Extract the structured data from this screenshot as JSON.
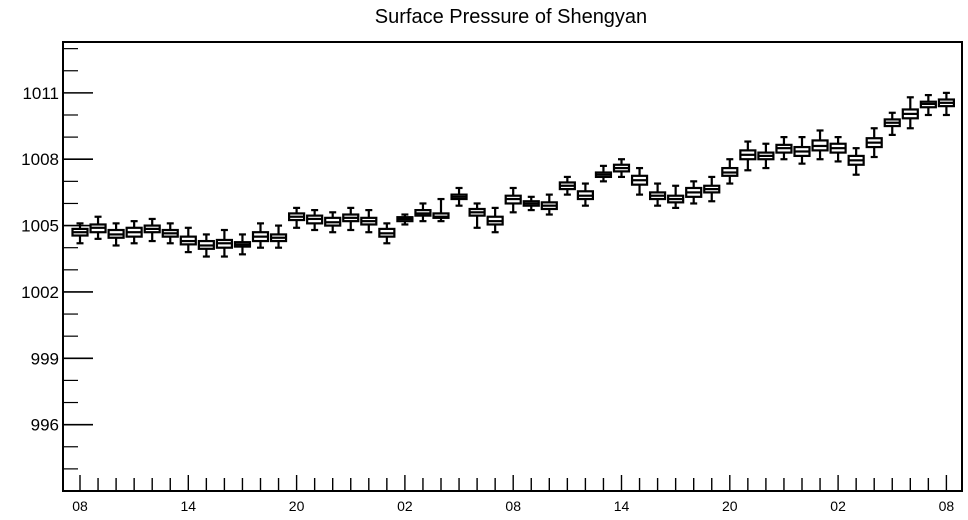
{
  "chart_data": {
    "type": "boxplot",
    "title": "Surface Pressure of Shengyan",
    "xlabel": "",
    "ylabel": "",
    "ylim": [
      993,
      1013.3
    ],
    "y_ticks": [
      996,
      999,
      1002,
      1005,
      1008,
      1011
    ],
    "y_tick_labels": [
      "996",
      "999",
      "1002",
      "1005",
      "1008",
      "1011"
    ],
    "x_tick_positions": [
      0,
      6,
      12,
      18,
      24,
      30,
      36,
      42,
      48
    ],
    "x_tick_labels": [
      "08",
      "14",
      "20",
      "02",
      "08",
      "14",
      "20",
      "02",
      "08"
    ],
    "grid": false,
    "legend": "none",
    "box_color": "#000000",
    "boxes": [
      {
        "x": 0,
        "whisker_low": 1004.2,
        "q1": 1004.55,
        "median": 1004.7,
        "q3": 1004.85,
        "whisker_high": 1005.1
      },
      {
        "x": 1,
        "whisker_low": 1004.4,
        "q1": 1004.7,
        "median": 1004.9,
        "q3": 1005.05,
        "whisker_high": 1005.4
      },
      {
        "x": 2,
        "whisker_low": 1004.1,
        "q1": 1004.45,
        "median": 1004.6,
        "q3": 1004.8,
        "whisker_high": 1005.1
      },
      {
        "x": 3,
        "whisker_low": 1004.2,
        "q1": 1004.5,
        "median": 1004.7,
        "q3": 1004.9,
        "whisker_high": 1005.2
      },
      {
        "x": 4,
        "whisker_low": 1004.3,
        "q1": 1004.7,
        "median": 1004.85,
        "q3": 1005.0,
        "whisker_high": 1005.3
      },
      {
        "x": 5,
        "whisker_low": 1004.2,
        "q1": 1004.5,
        "median": 1004.65,
        "q3": 1004.8,
        "whisker_high": 1005.1
      },
      {
        "x": 6,
        "whisker_low": 1003.8,
        "q1": 1004.15,
        "median": 1004.3,
        "q3": 1004.5,
        "whisker_high": 1004.9
      },
      {
        "x": 7,
        "whisker_low": 1003.6,
        "q1": 1003.95,
        "median": 1004.1,
        "q3": 1004.3,
        "whisker_high": 1004.6
      },
      {
        "x": 8,
        "whisker_low": 1003.6,
        "q1": 1004.0,
        "median": 1004.2,
        "q3": 1004.35,
        "whisker_high": 1004.8
      },
      {
        "x": 9,
        "whisker_low": 1003.7,
        "q1": 1004.05,
        "median": 1004.15,
        "q3": 1004.25,
        "whisker_high": 1004.6
      },
      {
        "x": 10,
        "whisker_low": 1004.0,
        "q1": 1004.3,
        "median": 1004.5,
        "q3": 1004.7,
        "whisker_high": 1005.1
      },
      {
        "x": 11,
        "whisker_low": 1004.0,
        "q1": 1004.3,
        "median": 1004.45,
        "q3": 1004.6,
        "whisker_high": 1005.0
      },
      {
        "x": 12,
        "whisker_low": 1004.9,
        "q1": 1005.25,
        "median": 1005.4,
        "q3": 1005.55,
        "whisker_high": 1005.8
      },
      {
        "x": 13,
        "whisker_low": 1004.8,
        "q1": 1005.1,
        "median": 1005.3,
        "q3": 1005.45,
        "whisker_high": 1005.7
      },
      {
        "x": 14,
        "whisker_low": 1004.7,
        "q1": 1005.0,
        "median": 1005.15,
        "q3": 1005.35,
        "whisker_high": 1005.6
      },
      {
        "x": 15,
        "whisker_low": 1004.8,
        "q1": 1005.2,
        "median": 1005.35,
        "q3": 1005.5,
        "whisker_high": 1005.8
      },
      {
        "x": 16,
        "whisker_low": 1004.7,
        "q1": 1005.05,
        "median": 1005.2,
        "q3": 1005.35,
        "whisker_high": 1005.7
      },
      {
        "x": 17,
        "whisker_low": 1004.2,
        "q1": 1004.5,
        "median": 1004.65,
        "q3": 1004.85,
        "whisker_high": 1005.1
      },
      {
        "x": 18,
        "whisker_low": 1005.05,
        "q1": 1005.2,
        "median": 1005.3,
        "q3": 1005.38,
        "whisker_high": 1005.5
      },
      {
        "x": 19,
        "whisker_low": 1005.2,
        "q1": 1005.45,
        "median": 1005.55,
        "q3": 1005.7,
        "whisker_high": 1006.0
      },
      {
        "x": 20,
        "whisker_low": 1005.2,
        "q1": 1005.35,
        "median": 1005.4,
        "q3": 1005.55,
        "whisker_high": 1006.2
      },
      {
        "x": 21,
        "whisker_low": 1005.9,
        "q1": 1006.2,
        "median": 1006.3,
        "q3": 1006.4,
        "whisker_high": 1006.7
      },
      {
        "x": 22,
        "whisker_low": 1004.9,
        "q1": 1005.45,
        "median": 1005.6,
        "q3": 1005.75,
        "whisker_high": 1006.0
      },
      {
        "x": 23,
        "whisker_low": 1004.7,
        "q1": 1005.05,
        "median": 1005.2,
        "q3": 1005.4,
        "whisker_high": 1005.8
      },
      {
        "x": 24,
        "whisker_low": 1005.6,
        "q1": 1006.0,
        "median": 1006.2,
        "q3": 1006.35,
        "whisker_high": 1006.7
      },
      {
        "x": 25,
        "whisker_low": 1005.7,
        "q1": 1005.9,
        "median": 1006.0,
        "q3": 1006.1,
        "whisker_high": 1006.3
      },
      {
        "x": 26,
        "whisker_low": 1005.5,
        "q1": 1005.75,
        "median": 1005.9,
        "q3": 1006.05,
        "whisker_high": 1006.4
      },
      {
        "x": 27,
        "whisker_low": 1006.4,
        "q1": 1006.65,
        "median": 1006.8,
        "q3": 1006.95,
        "whisker_high": 1007.2
      },
      {
        "x": 28,
        "whisker_low": 1005.9,
        "q1": 1006.2,
        "median": 1006.35,
        "q3": 1006.55,
        "whisker_high": 1006.9
      },
      {
        "x": 29,
        "whisker_low": 1007.0,
        "q1": 1007.2,
        "median": 1007.3,
        "q3": 1007.4,
        "whisker_high": 1007.7
      },
      {
        "x": 30,
        "whisker_low": 1007.2,
        "q1": 1007.45,
        "median": 1007.6,
        "q3": 1007.75,
        "whisker_high": 1008.0
      },
      {
        "x": 31,
        "whisker_low": 1006.4,
        "q1": 1006.85,
        "median": 1007.05,
        "q3": 1007.25,
        "whisker_high": 1007.6
      },
      {
        "x": 32,
        "whisker_low": 1005.9,
        "q1": 1006.2,
        "median": 1006.35,
        "q3": 1006.5,
        "whisker_high": 1006.9
      },
      {
        "x": 33,
        "whisker_low": 1005.8,
        "q1": 1006.05,
        "median": 1006.2,
        "q3": 1006.35,
        "whisker_high": 1006.8
      },
      {
        "x": 34,
        "whisker_low": 1006.0,
        "q1": 1006.3,
        "median": 1006.5,
        "q3": 1006.7,
        "whisker_high": 1007.0
      },
      {
        "x": 35,
        "whisker_low": 1006.1,
        "q1": 1006.5,
        "median": 1006.65,
        "q3": 1006.8,
        "whisker_high": 1007.2
      },
      {
        "x": 36,
        "whisker_low": 1006.9,
        "q1": 1007.25,
        "median": 1007.4,
        "q3": 1007.6,
        "whisker_high": 1008.0
      },
      {
        "x": 37,
        "whisker_low": 1007.5,
        "q1": 1008.0,
        "median": 1008.2,
        "q3": 1008.4,
        "whisker_high": 1008.8
      },
      {
        "x": 38,
        "whisker_low": 1007.6,
        "q1": 1008.0,
        "median": 1008.15,
        "q3": 1008.3,
        "whisker_high": 1008.7
      },
      {
        "x": 39,
        "whisker_low": 1008.0,
        "q1": 1008.3,
        "median": 1008.5,
        "q3": 1008.65,
        "whisker_high": 1009.0
      },
      {
        "x": 40,
        "whisker_low": 1007.8,
        "q1": 1008.15,
        "median": 1008.35,
        "q3": 1008.55,
        "whisker_high": 1009.0
      },
      {
        "x": 41,
        "whisker_low": 1008.0,
        "q1": 1008.4,
        "median": 1008.6,
        "q3": 1008.85,
        "whisker_high": 1009.3
      },
      {
        "x": 42,
        "whisker_low": 1007.9,
        "q1": 1008.3,
        "median": 1008.5,
        "q3": 1008.7,
        "whisker_high": 1009.0
      },
      {
        "x": 43,
        "whisker_low": 1007.3,
        "q1": 1007.75,
        "median": 1007.95,
        "q3": 1008.15,
        "whisker_high": 1008.5
      },
      {
        "x": 44,
        "whisker_low": 1008.1,
        "q1": 1008.55,
        "median": 1008.75,
        "q3": 1008.95,
        "whisker_high": 1009.4
      },
      {
        "x": 45,
        "whisker_low": 1009.1,
        "q1": 1009.5,
        "median": 1009.65,
        "q3": 1009.8,
        "whisker_high": 1010.1
      },
      {
        "x": 46,
        "whisker_low": 1009.4,
        "q1": 1009.85,
        "median": 1010.05,
        "q3": 1010.25,
        "whisker_high": 1010.8
      },
      {
        "x": 47,
        "whisker_low": 1010.0,
        "q1": 1010.35,
        "median": 1010.5,
        "q3": 1010.6,
        "whisker_high": 1010.9
      },
      {
        "x": 48,
        "whisker_low": 1010.0,
        "q1": 1010.4,
        "median": 1010.55,
        "q3": 1010.7,
        "whisker_high": 1011.0
      }
    ]
  }
}
